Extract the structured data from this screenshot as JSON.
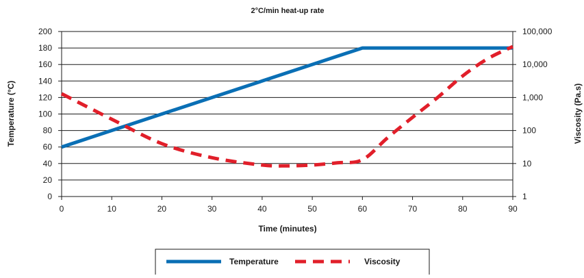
{
  "chart_data": {
    "type": "line",
    "title": "2°C/min heat-up rate",
    "xlabel": "Time (minutes)",
    "ylabel_left": "Temperature (°C)",
    "ylabel_right": "Viscosity (Pa.s)",
    "xlim": [
      0,
      90
    ],
    "ylim_left": [
      0,
      200
    ],
    "ylim_right": [
      1,
      100000
    ],
    "right_axis_scale": "log",
    "grid": "horizontal",
    "legend_placement": "bottom-center",
    "x_ticks": [
      "0",
      "10",
      "20",
      "30",
      "40",
      "50",
      "60",
      "70",
      "80",
      "90"
    ],
    "y_left_ticks": [
      "0",
      "20",
      "40",
      "60",
      "80",
      "100",
      "120",
      "140",
      "160",
      "180",
      "200"
    ],
    "y_right_ticks": [
      "1",
      "10",
      "100",
      "1,000",
      "10,000",
      "100,000"
    ],
    "series": [
      {
        "name": "Temperature",
        "axis": "left",
        "color": "#0a6fb5",
        "style": "solid",
        "x": [
          0,
          60,
          90
        ],
        "y": [
          60,
          180,
          180
        ]
      },
      {
        "name": "Viscosity",
        "axis": "right",
        "color": "#e11f2a",
        "style": "dashed",
        "x": [
          0,
          10,
          20,
          30,
          40,
          45,
          50,
          55,
          60,
          65,
          70,
          75,
          80,
          85,
          90
        ],
        "y": [
          1300,
          220,
          40,
          15,
          9,
          8.5,
          9,
          10.5,
          13,
          60,
          250,
          1000,
          4500,
          15000,
          35000
        ]
      }
    ]
  }
}
